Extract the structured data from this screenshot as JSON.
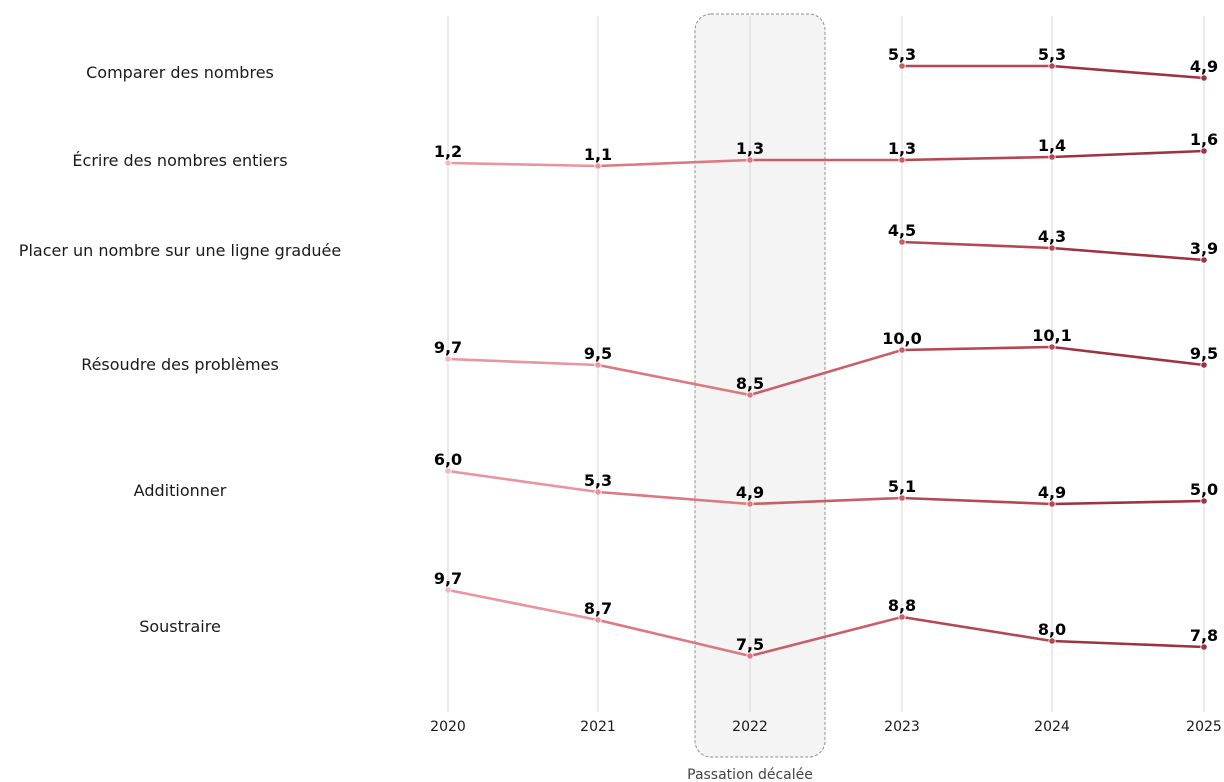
{
  "chart_data": {
    "type": "line",
    "title": "",
    "xlabel": "",
    "ylabel": "",
    "x": [
      "2020",
      "2021",
      "2022",
      "2023",
      "2024",
      "2025"
    ],
    "highlight": {
      "x": "2022",
      "label": "Passation décalée"
    },
    "series": [
      {
        "name": "Comparer des nombres",
        "values": [
          null,
          null,
          null,
          5.3,
          5.3,
          4.9
        ],
        "labels": [
          null,
          null,
          null,
          "5,3",
          "5,3",
          "4,9"
        ]
      },
      {
        "name": "Écrire des nombres entiers",
        "values": [
          1.2,
          1.1,
          1.3,
          1.3,
          1.4,
          1.6
        ],
        "labels": [
          "1,2",
          "1,1",
          "1,3",
          "1,3",
          "1,4",
          "1,6"
        ]
      },
      {
        "name": "Placer un nombre sur une ligne graduée",
        "values": [
          null,
          null,
          null,
          4.5,
          4.3,
          3.9
        ],
        "labels": [
          null,
          null,
          null,
          "4,5",
          "4,3",
          "3,9"
        ]
      },
      {
        "name": "Résoudre des problèmes",
        "values": [
          9.7,
          9.5,
          8.5,
          10.0,
          10.1,
          9.5
        ],
        "labels": [
          "9,7",
          "9,5",
          "8,5",
          "10,0",
          "10,1",
          "9,5"
        ]
      },
      {
        "name": "Additionner",
        "values": [
          6.0,
          5.3,
          4.9,
          5.1,
          4.9,
          5.0
        ],
        "labels": [
          "6,0",
          "5,3",
          "4,9",
          "5,1",
          "4,9",
          "5,0"
        ]
      },
      {
        "name": "Soustraire",
        "values": [
          9.7,
          8.7,
          7.5,
          8.8,
          8.0,
          7.8
        ],
        "labels": [
          "9,7",
          "8,7",
          "7,5",
          "8,8",
          "8,0",
          "7,8"
        ]
      }
    ],
    "year_colors": [
      "#f4b6c0",
      "#e9949e",
      "#dc7880",
      "#c95e68",
      "#b44752",
      "#9e3340"
    ],
    "grid": true
  }
}
